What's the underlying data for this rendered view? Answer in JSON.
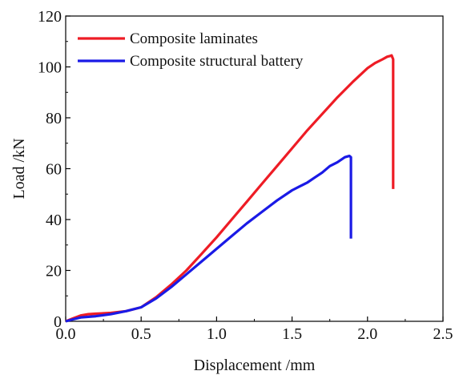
{
  "chart_data": {
    "type": "line",
    "title": "",
    "xlabel": "Displacement /mm",
    "ylabel": "Load /kN",
    "xlim": [
      0,
      2.5
    ],
    "ylim": [
      0,
      120
    ],
    "xticks": [
      0,
      0.5,
      1.0,
      1.5,
      2.0,
      2.5
    ],
    "xtick_labels": [
      "0.0",
      "0.5",
      "1.0",
      "1.5",
      "2.0",
      "2.5"
    ],
    "yticks": [
      0,
      20,
      40,
      60,
      80,
      100,
      120
    ],
    "ytick_labels": [
      "0",
      "20",
      "40",
      "60",
      "80",
      "100",
      "120"
    ],
    "grid": false,
    "legend_position": "top-left",
    "series": [
      {
        "name": "Composite laminates",
        "color": "#ee1c25",
        "x": [
          0.0,
          0.05,
          0.1,
          0.15,
          0.2,
          0.3,
          0.4,
          0.5,
          0.6,
          0.7,
          0.8,
          0.9,
          1.0,
          1.1,
          1.2,
          1.3,
          1.4,
          1.5,
          1.6,
          1.7,
          1.8,
          1.9,
          2.0,
          2.05,
          2.1,
          2.13,
          2.15,
          2.16,
          2.17,
          2.17
        ],
        "y": [
          0.0,
          1.2,
          2.3,
          2.8,
          3.0,
          3.3,
          4.0,
          5.5,
          9.5,
          14.5,
          20.0,
          26.5,
          33.0,
          40.0,
          47.0,
          54.0,
          61.0,
          68.0,
          75.0,
          81.5,
          88.0,
          94.0,
          99.5,
          101.5,
          103.0,
          104.0,
          104.3,
          104.5,
          103.0,
          52.0
        ]
      },
      {
        "name": "Composite structural battery",
        "color": "#1a1ae6",
        "x": [
          0.0,
          0.05,
          0.1,
          0.2,
          0.3,
          0.4,
          0.5,
          0.6,
          0.7,
          0.8,
          0.9,
          1.0,
          1.1,
          1.2,
          1.3,
          1.4,
          1.5,
          1.55,
          1.6,
          1.65,
          1.7,
          1.75,
          1.8,
          1.85,
          1.88,
          1.89,
          1.89
        ],
        "y": [
          0.0,
          0.8,
          1.5,
          2.0,
          2.8,
          4.0,
          5.5,
          9.0,
          13.5,
          18.5,
          23.5,
          28.5,
          33.5,
          38.5,
          43.0,
          47.5,
          51.5,
          53.0,
          54.5,
          56.5,
          58.5,
          61.0,
          62.5,
          64.5,
          65.0,
          64.5,
          32.5
        ]
      }
    ]
  }
}
